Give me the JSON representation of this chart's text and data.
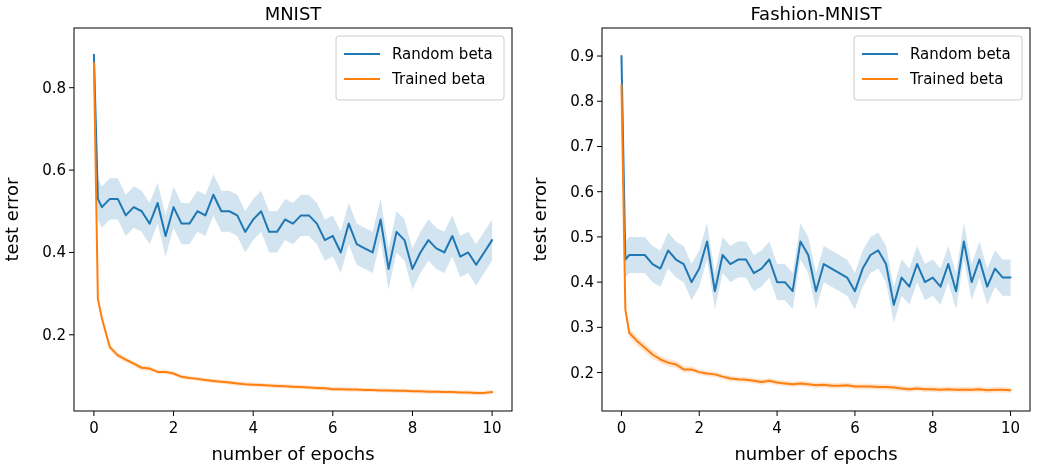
{
  "chart_data": [
    {
      "type": "line",
      "title": "MNIST",
      "xlabel": "number of epochs",
      "ylabel": "test error",
      "legend": "top right",
      "grid": false,
      "x": [
        0,
        0.1,
        0.2,
        0.4,
        0.6,
        0.8,
        1,
        1.2,
        1.4,
        1.6,
        1.8,
        2,
        2.2,
        2.4,
        2.6,
        2.8,
        3,
        3.2,
        3.4,
        3.6,
        3.8,
        4,
        4.2,
        4.4,
        4.6,
        4.8,
        5,
        5.2,
        5.4,
        5.6,
        5.8,
        6,
        6.2,
        6.4,
        6.6,
        6.8,
        7,
        7.2,
        7.4,
        7.6,
        7.8,
        8,
        8.2,
        8.4,
        8.6,
        8.8,
        9,
        9.2,
        9.4,
        9.6,
        9.8,
        10
      ],
      "xlim": [
        -0.5,
        10.5
      ],
      "xticks": [
        0,
        2,
        4,
        6,
        8,
        10
      ],
      "ylim": [
        0.015,
        0.945
      ],
      "yticks": [
        0.2,
        0.4,
        0.6,
        0.8
      ],
      "series": [
        {
          "name": "Random beta",
          "color": "#1f77b4",
          "values": [
            0.88,
            0.53,
            0.51,
            0.53,
            0.53,
            0.49,
            0.51,
            0.5,
            0.47,
            0.52,
            0.44,
            0.51,
            0.47,
            0.47,
            0.5,
            0.49,
            0.54,
            0.5,
            0.5,
            0.49,
            0.45,
            0.48,
            0.5,
            0.45,
            0.45,
            0.48,
            0.47,
            0.49,
            0.49,
            0.47,
            0.43,
            0.44,
            0.4,
            0.47,
            0.42,
            0.41,
            0.4,
            0.48,
            0.36,
            0.45,
            0.43,
            0.36,
            0.4,
            0.43,
            0.41,
            0.4,
            0.44,
            0.39,
            0.4,
            0.37,
            0.4,
            0.43
          ],
          "lower": [
            0.87,
            0.48,
            0.46,
            0.48,
            0.48,
            0.44,
            0.46,
            0.45,
            0.42,
            0.47,
            0.39,
            0.46,
            0.42,
            0.42,
            0.45,
            0.44,
            0.49,
            0.45,
            0.45,
            0.44,
            0.4,
            0.43,
            0.45,
            0.4,
            0.4,
            0.43,
            0.42,
            0.44,
            0.44,
            0.42,
            0.38,
            0.39,
            0.35,
            0.42,
            0.37,
            0.36,
            0.35,
            0.43,
            0.31,
            0.4,
            0.38,
            0.31,
            0.35,
            0.38,
            0.36,
            0.35,
            0.39,
            0.34,
            0.35,
            0.32,
            0.35,
            0.38
          ],
          "upper": [
            0.89,
            0.58,
            0.56,
            0.58,
            0.58,
            0.54,
            0.56,
            0.55,
            0.52,
            0.57,
            0.49,
            0.56,
            0.52,
            0.52,
            0.55,
            0.54,
            0.59,
            0.55,
            0.55,
            0.54,
            0.5,
            0.53,
            0.55,
            0.5,
            0.5,
            0.53,
            0.52,
            0.54,
            0.54,
            0.52,
            0.48,
            0.49,
            0.45,
            0.52,
            0.47,
            0.46,
            0.45,
            0.53,
            0.41,
            0.5,
            0.48,
            0.41,
            0.45,
            0.48,
            0.46,
            0.45,
            0.49,
            0.44,
            0.45,
            0.42,
            0.45,
            0.48
          ]
        },
        {
          "name": "Trained beta",
          "color": "#ff7f0e",
          "values": [
            0.86,
            0.287,
            0.24,
            0.17,
            0.15,
            0.14,
            0.13,
            0.12,
            0.118,
            0.11,
            0.11,
            0.106,
            0.098,
            0.095,
            0.093,
            0.09,
            0.088,
            0.086,
            0.084,
            0.082,
            0.08,
            0.079,
            0.078,
            0.077,
            0.076,
            0.075,
            0.074,
            0.073,
            0.072,
            0.071,
            0.07,
            0.068,
            0.068,
            0.067,
            0.067,
            0.066,
            0.066,
            0.065,
            0.065,
            0.064,
            0.064,
            0.063,
            0.063,
            0.062,
            0.062,
            0.061,
            0.061,
            0.06,
            0.06,
            0.059,
            0.059,
            0.061
          ],
          "lower": [
            0.855,
            0.28,
            0.232,
            0.162,
            0.143,
            0.134,
            0.124,
            0.114,
            0.112,
            0.105,
            0.105,
            0.101,
            0.093,
            0.09,
            0.088,
            0.085,
            0.083,
            0.081,
            0.079,
            0.077,
            0.075,
            0.074,
            0.073,
            0.072,
            0.071,
            0.07,
            0.069,
            0.068,
            0.067,
            0.066,
            0.065,
            0.063,
            0.063,
            0.062,
            0.062,
            0.061,
            0.061,
            0.06,
            0.06,
            0.059,
            0.059,
            0.058,
            0.058,
            0.057,
            0.057,
            0.056,
            0.056,
            0.055,
            0.055,
            0.054,
            0.054,
            0.056
          ],
          "upper": [
            0.865,
            0.294,
            0.248,
            0.178,
            0.157,
            0.146,
            0.136,
            0.126,
            0.124,
            0.115,
            0.115,
            0.111,
            0.103,
            0.1,
            0.098,
            0.095,
            0.093,
            0.091,
            0.089,
            0.087,
            0.085,
            0.084,
            0.083,
            0.082,
            0.081,
            0.08,
            0.079,
            0.078,
            0.077,
            0.076,
            0.075,
            0.073,
            0.073,
            0.072,
            0.072,
            0.071,
            0.071,
            0.07,
            0.07,
            0.069,
            0.069,
            0.068,
            0.068,
            0.067,
            0.067,
            0.066,
            0.066,
            0.065,
            0.065,
            0.064,
            0.064,
            0.066
          ]
        }
      ]
    },
    {
      "type": "line",
      "title": "Fashion-MNIST",
      "xlabel": "number of epochs",
      "ylabel": "test error",
      "legend": "top right",
      "grid": false,
      "x": [
        0,
        0.1,
        0.2,
        0.4,
        0.6,
        0.8,
        1,
        1.2,
        1.4,
        1.6,
        1.8,
        2,
        2.2,
        2.4,
        2.6,
        2.8,
        3,
        3.2,
        3.4,
        3.6,
        3.8,
        4,
        4.2,
        4.4,
        4.6,
        4.8,
        5,
        5.2,
        5.4,
        5.6,
        5.8,
        6,
        6.2,
        6.4,
        6.6,
        6.8,
        7,
        7.2,
        7.4,
        7.6,
        7.8,
        8,
        8.2,
        8.4,
        8.6,
        8.8,
        9,
        9.2,
        9.4,
        9.6,
        9.8,
        10
      ],
      "xlim": [
        -0.5,
        10.5
      ],
      "xticks": [
        0,
        2,
        4,
        6,
        8,
        10
      ],
      "ylim": [
        0.115,
        0.962
      ],
      "yticks": [
        0.2,
        0.3,
        0.4,
        0.5,
        0.6,
        0.7,
        0.8,
        0.9
      ],
      "series": [
        {
          "name": "Random beta",
          "color": "#1f77b4",
          "values": [
            0.9,
            0.45,
            0.46,
            0.46,
            0.46,
            0.44,
            0.43,
            0.47,
            0.45,
            0.44,
            0.4,
            0.43,
            0.49,
            0.38,
            0.46,
            0.44,
            0.45,
            0.45,
            0.42,
            0.43,
            0.45,
            0.4,
            0.4,
            0.38,
            0.49,
            0.46,
            0.38,
            0.44,
            0.43,
            0.42,
            0.41,
            0.38,
            0.43,
            0.46,
            0.47,
            0.44,
            0.35,
            0.41,
            0.39,
            0.44,
            0.4,
            0.41,
            0.39,
            0.44,
            0.38,
            0.49,
            0.4,
            0.45,
            0.39,
            0.43,
            0.41,
            0.41
          ],
          "lower": [
            0.895,
            0.41,
            0.42,
            0.42,
            0.42,
            0.4,
            0.39,
            0.43,
            0.41,
            0.4,
            0.36,
            0.39,
            0.45,
            0.34,
            0.42,
            0.4,
            0.41,
            0.41,
            0.38,
            0.39,
            0.41,
            0.36,
            0.36,
            0.34,
            0.45,
            0.42,
            0.34,
            0.4,
            0.39,
            0.38,
            0.37,
            0.34,
            0.39,
            0.42,
            0.43,
            0.4,
            0.31,
            0.37,
            0.35,
            0.4,
            0.36,
            0.37,
            0.35,
            0.4,
            0.34,
            0.45,
            0.36,
            0.41,
            0.35,
            0.39,
            0.37,
            0.37
          ],
          "upper": [
            0.905,
            0.49,
            0.5,
            0.5,
            0.5,
            0.48,
            0.47,
            0.51,
            0.49,
            0.48,
            0.44,
            0.47,
            0.53,
            0.42,
            0.5,
            0.48,
            0.49,
            0.49,
            0.46,
            0.47,
            0.49,
            0.44,
            0.44,
            0.42,
            0.53,
            0.5,
            0.42,
            0.48,
            0.47,
            0.46,
            0.45,
            0.42,
            0.47,
            0.5,
            0.51,
            0.48,
            0.39,
            0.45,
            0.43,
            0.48,
            0.44,
            0.45,
            0.43,
            0.48,
            0.42,
            0.53,
            0.44,
            0.49,
            0.43,
            0.47,
            0.45,
            0.45
          ]
        },
        {
          "name": "Trained beta",
          "color": "#ff7f0e",
          "values": [
            0.836,
            0.34,
            0.288,
            0.27,
            0.255,
            0.24,
            0.229,
            0.222,
            0.218,
            0.207,
            0.207,
            0.201,
            0.198,
            0.196,
            0.191,
            0.187,
            0.185,
            0.184,
            0.182,
            0.179,
            0.182,
            0.178,
            0.176,
            0.174,
            0.176,
            0.174,
            0.172,
            0.173,
            0.171,
            0.171,
            0.172,
            0.169,
            0.169,
            0.169,
            0.168,
            0.168,
            0.167,
            0.165,
            0.163,
            0.165,
            0.163,
            0.163,
            0.162,
            0.163,
            0.162,
            0.162,
            0.162,
            0.163,
            0.161,
            0.162,
            0.162,
            0.161
          ],
          "lower": [
            0.83,
            0.33,
            0.278,
            0.26,
            0.245,
            0.23,
            0.221,
            0.214,
            0.21,
            0.2,
            0.2,
            0.195,
            0.192,
            0.19,
            0.185,
            0.181,
            0.179,
            0.178,
            0.176,
            0.173,
            0.176,
            0.172,
            0.17,
            0.168,
            0.17,
            0.168,
            0.166,
            0.167,
            0.165,
            0.165,
            0.166,
            0.163,
            0.163,
            0.163,
            0.162,
            0.162,
            0.161,
            0.159,
            0.157,
            0.159,
            0.157,
            0.157,
            0.156,
            0.157,
            0.156,
            0.156,
            0.156,
            0.157,
            0.155,
            0.156,
            0.156,
            0.155
          ],
          "upper": [
            0.842,
            0.35,
            0.298,
            0.28,
            0.265,
            0.25,
            0.237,
            0.23,
            0.226,
            0.214,
            0.214,
            0.207,
            0.204,
            0.202,
            0.197,
            0.193,
            0.191,
            0.19,
            0.188,
            0.185,
            0.188,
            0.184,
            0.182,
            0.18,
            0.182,
            0.18,
            0.178,
            0.179,
            0.177,
            0.177,
            0.178,
            0.175,
            0.175,
            0.175,
            0.174,
            0.174,
            0.173,
            0.171,
            0.169,
            0.171,
            0.169,
            0.169,
            0.168,
            0.169,
            0.168,
            0.168,
            0.168,
            0.169,
            0.167,
            0.168,
            0.168,
            0.167
          ]
        }
      ]
    }
  ]
}
